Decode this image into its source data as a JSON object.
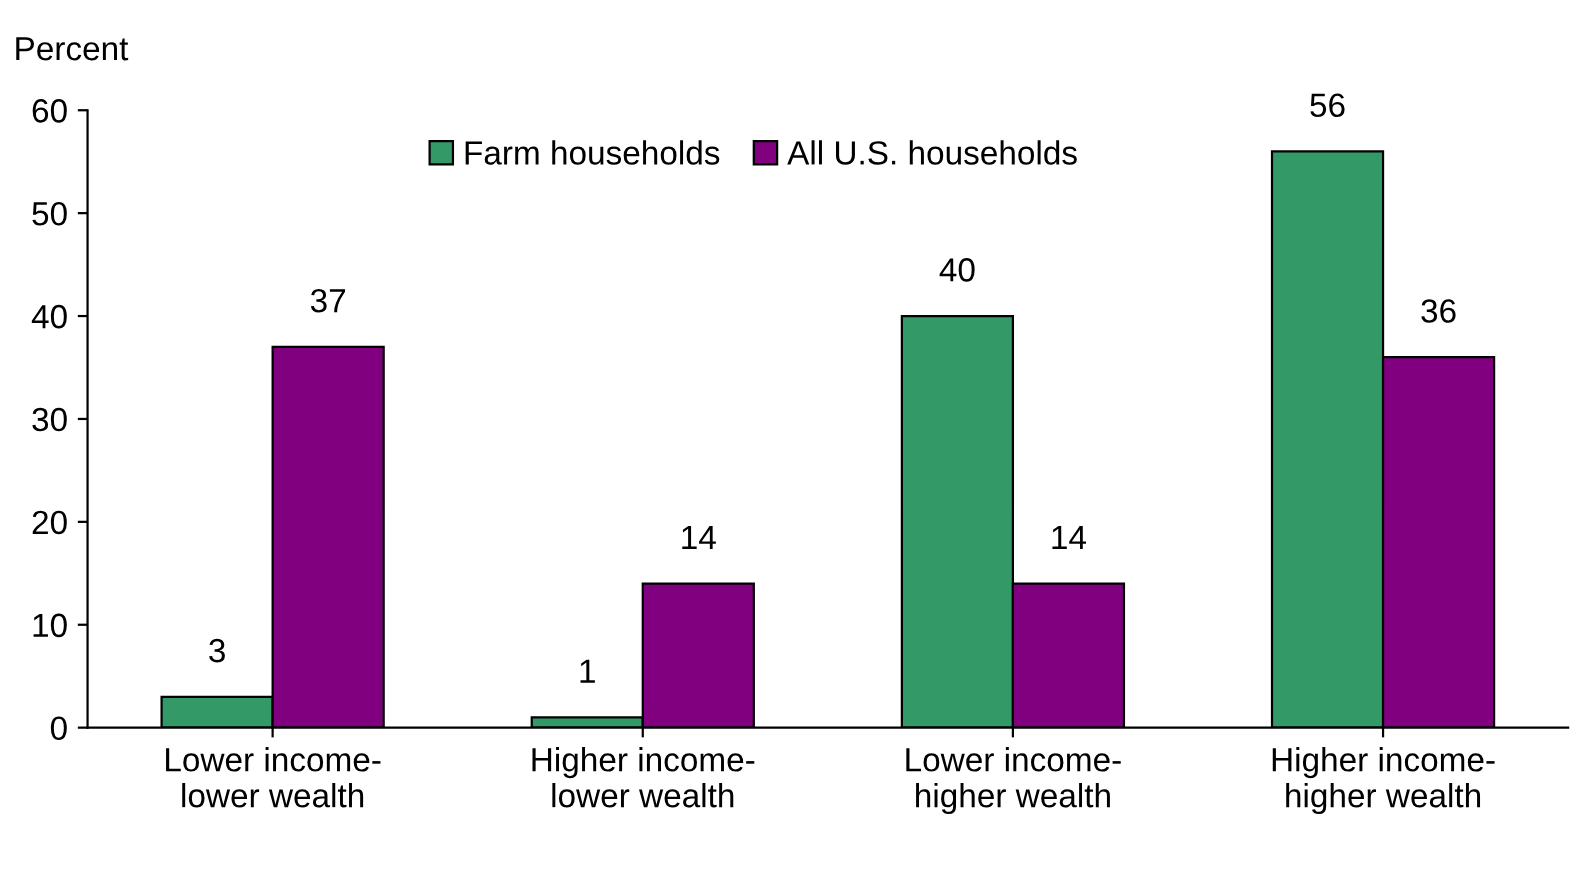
{
  "chart_data": {
    "type": "bar",
    "ylabel": "Percent",
    "categories": [
      "Lower income-\nlower wealth",
      "Higher income-\nlower wealth",
      "Lower income-\nhigher wealth",
      "Higher income-\nhigher wealth"
    ],
    "series": [
      {
        "name": "Farm households",
        "color": "#339966",
        "values": [
          3,
          1,
          40,
          56
        ]
      },
      {
        "name": "All U.S. households",
        "color": "#800080",
        "values": [
          37,
          14,
          14,
          36
        ]
      }
    ],
    "ylim": [
      0,
      60
    ],
    "yticks": [
      0,
      10,
      20,
      30,
      40,
      50,
      60
    ],
    "data_labels": true,
    "legend": "top",
    "grid": false
  }
}
